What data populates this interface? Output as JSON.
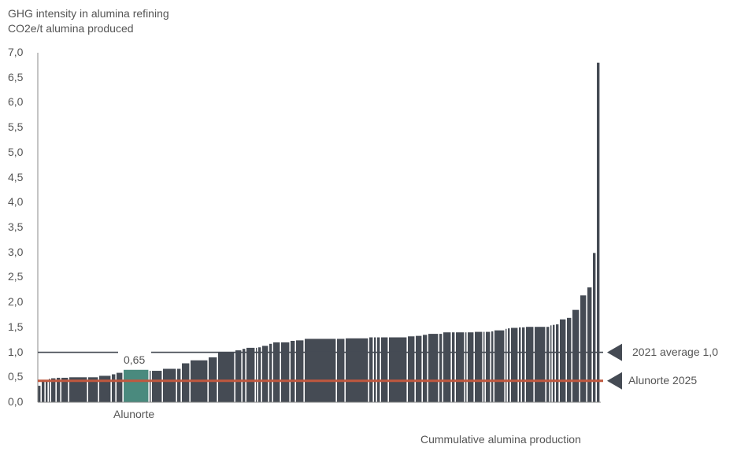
{
  "chart_data": {
    "type": "bar",
    "title": "GHG intensity in alumina refining",
    "ylabel": "CO2e/t alumina produced",
    "xlabel": "Cummulative alumina production",
    "ylim": [
      0,
      7
    ],
    "yticks": [
      "0,0",
      "0,5",
      "1,0",
      "1,5",
      "2,0",
      "2,5",
      "3,0",
      "3,5",
      "4,0",
      "4,5",
      "5,0",
      "5,5",
      "6,0",
      "6,5",
      "7,0"
    ],
    "grid": false,
    "bar_color": "#454b54",
    "highlight_color": "#4a8a7e",
    "highlight": {
      "label": "Alunorte",
      "value_label": "0,65",
      "index": 12
    },
    "reference_lines": [
      {
        "name": "2021 average 1,0",
        "value": 1.0,
        "color": "#454b54"
      },
      {
        "name": "Alunorte 2025",
        "value": 0.43,
        "color": "#c0583f"
      }
    ],
    "bars": {
      "relative_production": [
        5,
        5,
        4,
        3,
        7,
        6,
        10,
        24,
        14,
        16,
        6,
        9,
        33,
        3,
        14,
        18,
        6,
        11,
        23,
        12,
        22,
        9,
        5,
        12,
        3,
        5,
        9,
        5,
        10,
        12,
        7,
        11,
        41,
        11,
        30,
        6,
        4,
        5,
        10,
        24,
        10,
        9,
        7,
        14,
        5,
        11,
        5,
        12,
        3,
        9,
        11,
        3,
        7,
        4,
        14,
        3,
        4,
        10,
        4,
        5,
        11,
        15,
        5,
        3,
        4,
        5,
        9,
        7,
        10,
        9,
        7,
        5,
        5
      ],
      "values": [
        0.33,
        0.41,
        0.42,
        0.47,
        0.48,
        0.49,
        0.49,
        0.5,
        0.5,
        0.53,
        0.56,
        0.59,
        0.65,
        0.63,
        0.63,
        0.67,
        0.67,
        0.78,
        0.84,
        0.9,
        1.0,
        1.04,
        1.07,
        1.09,
        1.09,
        1.1,
        1.13,
        1.17,
        1.2,
        1.2,
        1.23,
        1.24,
        1.27,
        1.27,
        1.28,
        1.3,
        1.3,
        1.3,
        1.3,
        1.3,
        1.32,
        1.33,
        1.35,
        1.37,
        1.37,
        1.4,
        1.4,
        1.4,
        1.4,
        1.4,
        1.41,
        1.41,
        1.41,
        1.42,
        1.44,
        1.47,
        1.48,
        1.49,
        1.5,
        1.5,
        1.51,
        1.51,
        1.51,
        1.54,
        1.55,
        1.56,
        1.66,
        1.69,
        1.85,
        2.14,
        2.3,
        2.99,
        6.8
      ]
    }
  }
}
